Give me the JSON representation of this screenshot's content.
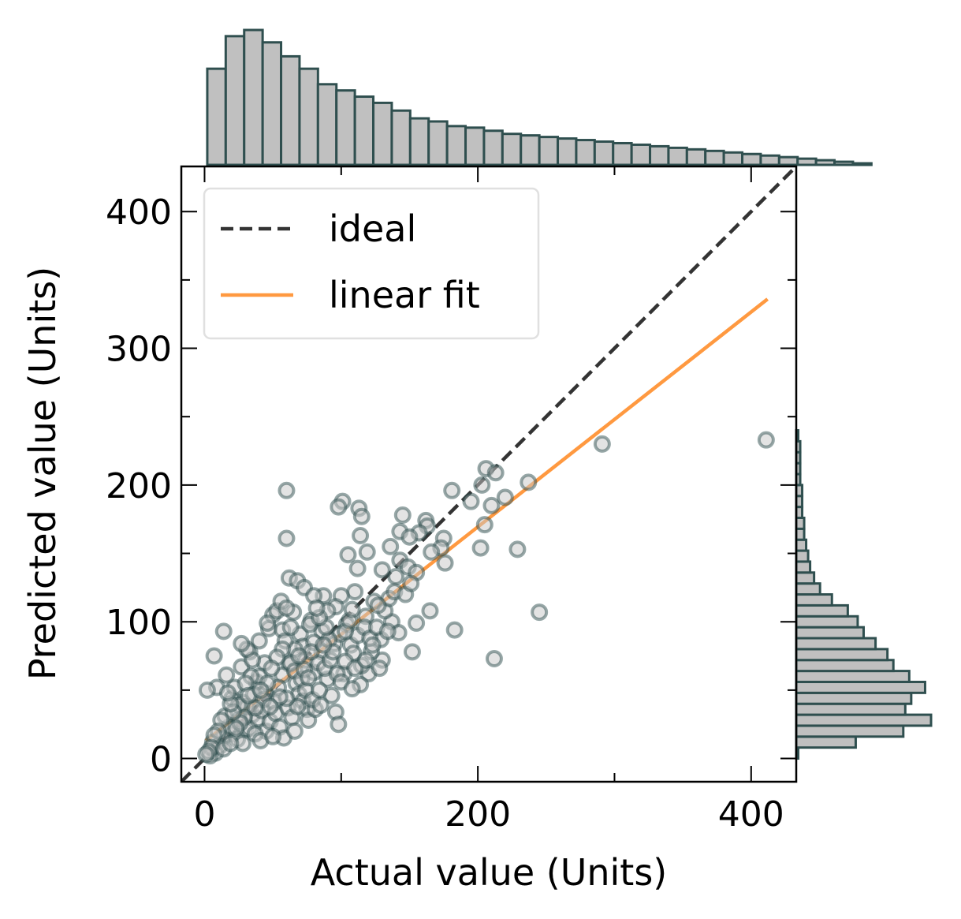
{
  "chart_data": {
    "type": "scatter",
    "title": "",
    "xlabel": "Actual value (Units)",
    "ylabel": "Predicted value (Units)",
    "xlim": [
      -17,
      433
    ],
    "ylim": [
      -17,
      433
    ],
    "x_ticks": [
      0,
      200,
      400
    ],
    "y_ticks": [
      0,
      100,
      200,
      300,
      400
    ],
    "x_minor_ticks": [
      100,
      300
    ],
    "y_minor_ticks": [
      50,
      150,
      250,
      350
    ],
    "tick_direction": "in",
    "grid": false,
    "legend": {
      "placement": "top-left",
      "entries": [
        {
          "label": "ideal",
          "style": "dashed",
          "color": "#333333"
        },
        {
          "label": "linear fit",
          "style": "solid",
          "color": "#ff9940"
        }
      ]
    },
    "series": [
      {
        "kind": "line",
        "legend_label": "ideal",
        "color": "#333333",
        "dashed": true,
        "points": [
          [
            -17,
            -17
          ],
          [
            433,
            433
          ]
        ]
      },
      {
        "kind": "line",
        "legend_label": "linear fit",
        "color": "#ff9940",
        "dashed": false,
        "points": [
          [
            1,
            13
          ],
          [
            412,
            336
          ]
        ]
      },
      {
        "kind": "scatter",
        "marker": "open-circle",
        "color": "#2f4f4f",
        "fill": "#c8c8c8",
        "points": [
          [
            60,
            196
          ],
          [
            203,
            200
          ],
          [
            206,
            212
          ],
          [
            213,
            209
          ],
          [
            181,
            196
          ],
          [
            195,
            188
          ],
          [
            210,
            185
          ],
          [
            220,
            191
          ],
          [
            237,
            202
          ],
          [
            205,
            171
          ],
          [
            202,
            154
          ],
          [
            229,
            153
          ],
          [
            145,
            178
          ],
          [
            162,
            174
          ],
          [
            163,
            170
          ],
          [
            157,
            165
          ],
          [
            143,
            166
          ],
          [
            150,
            162
          ],
          [
            175,
            161
          ],
          [
            173,
            154
          ],
          [
            176,
            143
          ],
          [
            166,
            151
          ],
          [
            101,
            188
          ],
          [
            98,
            184
          ],
          [
            113,
            183
          ],
          [
            115,
            177
          ],
          [
            114,
            163
          ],
          [
            105,
            149
          ],
          [
            119,
            151
          ],
          [
            112,
            139
          ],
          [
            136,
            155
          ],
          [
            143,
            145
          ],
          [
            140,
            133
          ],
          [
            149,
            140
          ],
          [
            155,
            136
          ],
          [
            130,
            138
          ],
          [
            60,
            161
          ],
          [
            62,
            132
          ],
          [
            68,
            130
          ],
          [
            73,
            125
          ],
          [
            291,
            230
          ],
          [
            411,
            233
          ],
          [
            245,
            107
          ],
          [
            183,
            94
          ],
          [
            212,
            73
          ],
          [
            152,
            78
          ],
          [
            165,
            108
          ],
          [
            155,
            99
          ],
          [
            137,
            100
          ],
          [
            142,
            92
          ],
          [
            129,
            87
          ],
          [
            130,
            72
          ],
          [
            122,
            78
          ],
          [
            120,
            62
          ],
          [
            115,
            68
          ],
          [
            124,
            115
          ],
          [
            118,
            104
          ],
          [
            110,
            122
          ],
          [
            100,
            119
          ],
          [
            96,
            111
          ],
          [
            104,
            98
          ],
          [
            90,
            108
          ],
          [
            87,
            119
          ],
          [
            80,
            119
          ],
          [
            78,
            101
          ],
          [
            86,
            93
          ],
          [
            70,
            91
          ],
          [
            72,
            82
          ],
          [
            66,
            80
          ],
          [
            74,
            72
          ],
          [
            80,
            63
          ],
          [
            62,
            69
          ],
          [
            57,
            61
          ],
          [
            54,
            52
          ],
          [
            51,
            41
          ],
          [
            44,
            48
          ],
          [
            38,
            56
          ],
          [
            35,
            32
          ],
          [
            30,
            21
          ],
          [
            25,
            28
          ],
          [
            20,
            18
          ],
          [
            18,
            23
          ],
          [
            13,
            15
          ],
          [
            11,
            9
          ],
          [
            8,
            4
          ],
          [
            6,
            12
          ],
          [
            4,
            2
          ],
          [
            15,
            31
          ],
          [
            20,
            44
          ],
          [
            22,
            52
          ],
          [
            28,
            41
          ],
          [
            31,
            38
          ],
          [
            27,
            67
          ],
          [
            16,
            61
          ],
          [
            7,
            75
          ],
          [
            14,
            93
          ],
          [
            9,
            52
          ],
          [
            2,
            50
          ],
          [
            33,
            78
          ],
          [
            40,
            86
          ],
          [
            44,
            70
          ],
          [
            47,
            95
          ],
          [
            50,
            105
          ],
          [
            53,
            108
          ],
          [
            56,
            115
          ],
          [
            57,
            94
          ],
          [
            59,
            86
          ],
          [
            63,
            70
          ],
          [
            67,
            55
          ],
          [
            69,
            47
          ],
          [
            72,
            42
          ],
          [
            75,
            36
          ],
          [
            76,
            28
          ],
          [
            81,
            36
          ],
          [
            90,
            58
          ],
          [
            93,
            46
          ],
          [
            96,
            34
          ],
          [
            98,
            25
          ],
          [
            102,
            62
          ],
          [
            107,
            83
          ],
          [
            109,
            77
          ],
          [
            112,
            90
          ],
          [
            86,
            78
          ],
          [
            83,
            70
          ],
          [
            80,
            85
          ],
          [
            77,
            98
          ],
          [
            65,
            107
          ],
          [
            60,
            110
          ],
          [
            46,
            99
          ],
          [
            40,
            60
          ],
          [
            36,
            47
          ],
          [
            34,
            60
          ],
          [
            30,
            55
          ],
          [
            25,
            39
          ],
          [
            24,
            14
          ],
          [
            28,
            11
          ],
          [
            33,
            22
          ],
          [
            39,
            29
          ],
          [
            42,
            35
          ],
          [
            45,
            20
          ],
          [
            48,
            27
          ],
          [
            52,
            33
          ],
          [
            55,
            23
          ],
          [
            58,
            15
          ],
          [
            61,
            37
          ],
          [
            64,
            30
          ],
          [
            66,
            64
          ],
          [
            71,
            58
          ],
          [
            74,
            50
          ],
          [
            79,
            43
          ],
          [
            84,
            50
          ],
          [
            88,
            66
          ],
          [
            92,
            72
          ],
          [
            95,
            84
          ],
          [
            99,
            91
          ],
          [
            103,
            93
          ],
          [
            106,
            101
          ],
          [
            108,
            109
          ],
          [
            117,
            96
          ],
          [
            121,
            88
          ],
          [
            126,
            96
          ],
          [
            132,
            108
          ],
          [
            135,
            117
          ],
          [
            139,
            122
          ],
          [
            147,
            120
          ],
          [
            151,
            128
          ],
          [
            134,
            93
          ],
          [
            127,
            112
          ],
          [
            103,
            71
          ],
          [
            97,
            62
          ],
          [
            91,
            87
          ],
          [
            89,
            96
          ],
          [
            84,
            103
          ],
          [
            82,
            110
          ],
          [
            78,
            78
          ],
          [
            73,
            65
          ],
          [
            69,
            75
          ],
          [
            63,
            96
          ],
          [
            57,
            80
          ],
          [
            53,
            74
          ],
          [
            49,
            66
          ],
          [
            46,
            55
          ],
          [
            43,
            43
          ],
          [
            37,
            37
          ],
          [
            32,
            46
          ],
          [
            29,
            30
          ],
          [
            26,
            26
          ],
          [
            23,
            22
          ],
          [
            21,
            34
          ],
          [
            19,
            40
          ],
          [
            17,
            48
          ],
          [
            12,
            28
          ],
          [
            10,
            20
          ],
          [
            7,
            17
          ],
          [
            5,
            8
          ],
          [
            3,
            5
          ],
          [
            1,
            3
          ],
          [
            14,
            7
          ],
          [
            19,
            11
          ],
          [
            37,
            18
          ],
          [
            41,
            13
          ],
          [
            50,
            16
          ],
          [
            66,
            20
          ],
          [
            85,
            39
          ],
          [
            100,
            56
          ],
          [
            110,
            66
          ],
          [
            118,
            72
          ],
          [
            123,
            83
          ],
          [
            128,
            66
          ],
          [
            114,
            54
          ],
          [
            108,
            51
          ],
          [
            94,
            78
          ],
          [
            87,
            83
          ],
          [
            76,
            59
          ],
          [
            68,
            38
          ],
          [
            60,
            44
          ],
          [
            55,
            45
          ],
          [
            48,
            38
          ],
          [
            41,
            50
          ],
          [
            35,
            72
          ],
          [
            31,
            80
          ],
          [
            27,
            84
          ]
        ]
      }
    ],
    "marginal_x": {
      "type": "histogram",
      "bin_start": 2,
      "bin_width": 13.5,
      "counts": [
        62,
        83,
        87,
        79,
        70,
        62,
        52,
        48,
        44,
        40,
        35,
        30,
        28,
        25,
        24,
        22,
        20,
        19,
        18,
        17,
        16,
        15,
        14,
        13,
        12,
        11,
        10,
        9,
        8,
        7,
        6,
        5,
        4,
        3,
        2,
        1
      ]
    },
    "marginal_y": {
      "type": "histogram",
      "bin_start": 0,
      "bin_width": 8,
      "counts": [
        1,
        30,
        54,
        68,
        55,
        58,
        65,
        57,
        49,
        46,
        40,
        34,
        31,
        26,
        18,
        12,
        9,
        7,
        6,
        5,
        4,
        4,
        3,
        3,
        3,
        2,
        2,
        2,
        2,
        1
      ]
    }
  }
}
